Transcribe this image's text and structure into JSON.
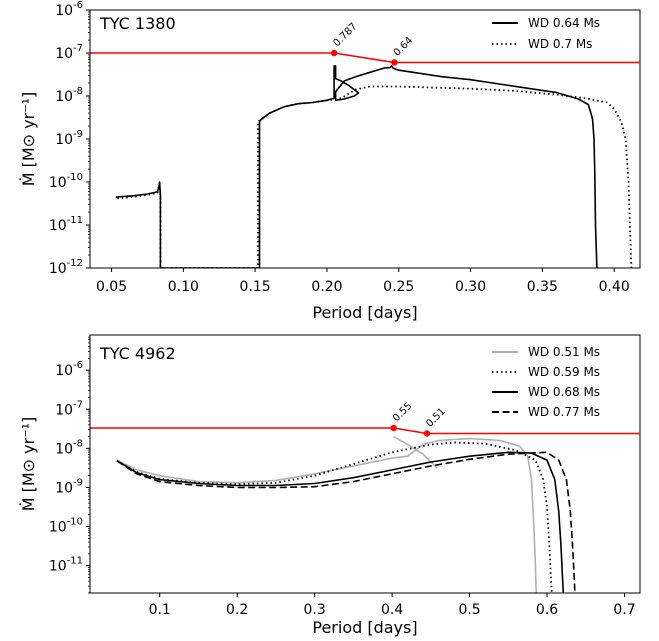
{
  "chart_data": [
    {
      "type": "line",
      "title": "TYC 1380",
      "xlabel": "Period [days]",
      "ylabel": "Ṁ [M⊙ yr⁻¹]",
      "xlim": [
        0.035,
        0.418
      ],
      "ylim_log10": [
        -12,
        -6
      ],
      "xticks": [
        "0.05",
        "0.10",
        "0.15",
        "0.20",
        "0.25",
        "0.30",
        "0.35",
        "0.40"
      ],
      "xtick_values": [
        0.05,
        0.1,
        0.15,
        0.2,
        0.25,
        0.3,
        0.35,
        0.4
      ],
      "yticks_exp": [
        "-12",
        "-11",
        "-10",
        "-9",
        "-8",
        "-7",
        "-6"
      ],
      "ytick_base": "10",
      "legend_position": "top-right",
      "series": [
        {
          "name": "WD 0.64 Ms",
          "style": "solid",
          "color": "#000000",
          "x": [
            0.053,
            0.065,
            0.075,
            0.082,
            0.083,
            0.0835,
            0.084,
            0.084,
            0.084,
            0.153,
            0.153,
            0.154,
            0.16,
            0.17,
            0.18,
            0.19,
            0.2,
            0.205,
            0.205,
            0.206,
            0.206,
            0.21,
            0.215,
            0.22,
            0.222,
            0.219,
            0.212,
            0.206,
            0.206,
            0.212,
            0.22,
            0.23,
            0.24,
            0.244,
            0.245,
            0.246,
            0.25,
            0.26,
            0.28,
            0.3,
            0.32,
            0.34,
            0.36,
            0.375,
            0.382,
            0.384,
            0.385,
            0.386,
            0.3865,
            0.387,
            0.388,
            0.389
          ],
          "log10y": [
            -10.35,
            -10.32,
            -10.28,
            -10.23,
            -10.1,
            -10.0,
            -10.3,
            -11,
            -12,
            -12,
            -8.6,
            -8.55,
            -8.4,
            -8.25,
            -8.18,
            -8.15,
            -8.1,
            -8.05,
            -7.3,
            -7.3,
            -7.6,
            -7.65,
            -7.75,
            -7.88,
            -7.93,
            -8.0,
            -8.07,
            -8.1,
            -7.9,
            -7.65,
            -7.55,
            -7.45,
            -7.35,
            -7.34,
            -7.3,
            -7.35,
            -7.4,
            -7.45,
            -7.55,
            -7.62,
            -7.72,
            -7.82,
            -7.92,
            -8.07,
            -8.2,
            -8.42,
            -8.55,
            -9,
            -9.8,
            -11,
            -12,
            -12
          ]
        },
        {
          "name": "WD 0.7 Ms",
          "style": "dotted",
          "color": "#000000",
          "x": [
            0.054,
            0.065,
            0.075,
            0.082,
            0.083,
            0.0835,
            0.084,
            0.084,
            0.152,
            0.152,
            0.154,
            0.16,
            0.17,
            0.18,
            0.19,
            0.2,
            0.21,
            0.22,
            0.23,
            0.25,
            0.27,
            0.3,
            0.33,
            0.36,
            0.38,
            0.395,
            0.4,
            0.405,
            0.408,
            0.41,
            0.411,
            0.412
          ],
          "log10y": [
            -10.38,
            -10.35,
            -10.3,
            -10.25,
            -10.1,
            -10.05,
            -10.4,
            -12,
            -12,
            -8.6,
            -8.55,
            -8.4,
            -8.25,
            -8.18,
            -8.15,
            -8.1,
            -8.05,
            -7.85,
            -7.78,
            -7.78,
            -7.8,
            -7.83,
            -7.88,
            -7.97,
            -8.05,
            -8.15,
            -8.3,
            -8.6,
            -9,
            -10,
            -11,
            -12
          ]
        },
        {
          "name": "",
          "style": "solid",
          "color": "#ff0000",
          "x": [
            0.035,
            0.205,
            0.247,
            0.418
          ],
          "log10y": [
            -7.0,
            -7.0,
            -7.22,
            -7.22
          ]
        }
      ],
      "points": [
        {
          "x": 0.205,
          "log10y": -7.0,
          "label": "0.787"
        },
        {
          "x": 0.247,
          "log10y": -7.22,
          "label": "0.64"
        }
      ]
    },
    {
      "type": "line",
      "title": "TYC 4962",
      "xlabel": "Period [days]",
      "ylabel": "Ṁ [M⊙ yr⁻¹]",
      "xlim": [
        0.01,
        0.72
      ],
      "ylim_log10": [
        -11.7,
        -5.1
      ],
      "xticks": [
        "0.1",
        "0.2",
        "0.3",
        "0.4",
        "0.5",
        "0.6",
        "0.7"
      ],
      "xtick_values": [
        0.1,
        0.2,
        0.3,
        0.4,
        0.5,
        0.6,
        0.7
      ],
      "yticks_exp": [
        "-11",
        "-10",
        "-9",
        "-8",
        "-7",
        "-6"
      ],
      "ytick_base": "10",
      "legend_position": "top-right",
      "series": [
        {
          "name": "WD 0.51 Ms",
          "style": "solid",
          "color": "#b0b0b0",
          "x": [
            0.045,
            0.07,
            0.1,
            0.15,
            0.2,
            0.25,
            0.3,
            0.35,
            0.4,
            0.42,
            0.44,
            0.46,
            0.5,
            0.54,
            0.565,
            0.575,
            0.58,
            0.583,
            0.585,
            0.586
          ],
          "log10y": [
            -8.3,
            -8.55,
            -8.7,
            -8.85,
            -8.88,
            -8.82,
            -8.65,
            -8.45,
            -8.25,
            -8.2,
            -7.9,
            -7.8,
            -7.75,
            -7.8,
            -7.95,
            -8.2,
            -8.8,
            -10,
            -11,
            -11.7
          ]
        },
        {
          "name": "",
          "style": "solid",
          "color": "#b0b0b0",
          "x": [
            0.402,
            0.42,
            0.44,
            0.458
          ],
          "log10y": [
            -7.7,
            -7.9,
            -8.15,
            -8.5
          ]
        },
        {
          "name": "WD 0.59 Ms",
          "style": "dotted",
          "color": "#000000",
          "x": [
            0.045,
            0.07,
            0.1,
            0.15,
            0.2,
            0.25,
            0.3,
            0.35,
            0.4,
            0.45,
            0.48,
            0.52,
            0.56,
            0.585,
            0.595,
            0.6,
            0.603,
            0.605,
            0.606
          ],
          "log10y": [
            -8.32,
            -8.6,
            -8.78,
            -8.88,
            -8.92,
            -8.88,
            -8.7,
            -8.4,
            -8.1,
            -7.9,
            -7.85,
            -7.88,
            -8.05,
            -8.3,
            -8.8,
            -9.5,
            -10.5,
            -11.3,
            -11.7
          ]
        },
        {
          "name": "WD 0.68 Ms",
          "style": "solid",
          "color": "#000000",
          "x": [
            0.045,
            0.07,
            0.1,
            0.15,
            0.2,
            0.25,
            0.3,
            0.35,
            0.4,
            0.45,
            0.5,
            0.55,
            0.58,
            0.6,
            0.61,
            0.615,
            0.618,
            0.62,
            0.621
          ],
          "log10y": [
            -8.32,
            -8.62,
            -8.8,
            -8.9,
            -8.95,
            -8.95,
            -8.9,
            -8.75,
            -8.55,
            -8.35,
            -8.2,
            -8.1,
            -8.12,
            -8.3,
            -8.8,
            -9.6,
            -10.5,
            -11.3,
            -11.7
          ]
        },
        {
          "name": "WD 0.77 Ms",
          "style": "dashed",
          "color": "#000000",
          "x": [
            0.045,
            0.07,
            0.1,
            0.15,
            0.2,
            0.25,
            0.3,
            0.35,
            0.4,
            0.45,
            0.5,
            0.55,
            0.6,
            0.615,
            0.625,
            0.63,
            0.633,
            0.635,
            0.636
          ],
          "log10y": [
            -8.32,
            -8.65,
            -8.85,
            -8.95,
            -9.0,
            -9.0,
            -8.98,
            -8.85,
            -8.65,
            -8.45,
            -8.28,
            -8.15,
            -8.1,
            -8.3,
            -8.8,
            -9.6,
            -10.5,
            -11.3,
            -11.7
          ]
        },
        {
          "name": "",
          "style": "solid",
          "color": "#ff0000",
          "x": [
            0.01,
            0.402,
            0.445,
            0.72
          ],
          "log10y": [
            -7.48,
            -7.48,
            -7.62,
            -7.62
          ]
        }
      ],
      "points": [
        {
          "x": 0.402,
          "log10y": -7.48,
          "label": "0.55"
        },
        {
          "x": 0.445,
          "log10y": -7.62,
          "label": "0.51"
        }
      ]
    }
  ]
}
